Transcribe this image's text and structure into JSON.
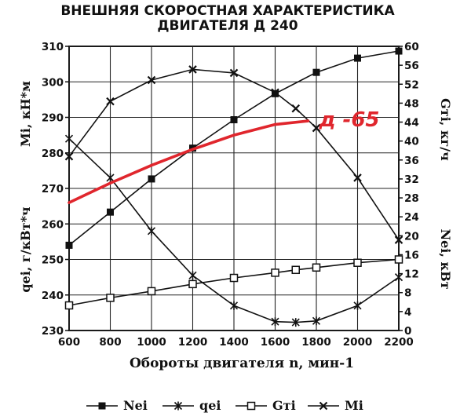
{
  "chart_data": {
    "type": "line",
    "title_line1": "ВНЕШНЯЯ СКОРОСТНАЯ ХАРАКТЕРИСТИКА",
    "title_line2": "ДВИГАТЕЛЯ Д 240",
    "xlabel": "Обороты двигателя n, мин-1",
    "x_ticks": [
      600,
      800,
      1000,
      1200,
      1400,
      1600,
      1800,
      2000,
      2200
    ],
    "xlim": [
      600,
      2200
    ],
    "grid": true,
    "left_axis": {
      "ylim": [
        230,
        310
      ],
      "ticks": [
        230,
        240,
        250,
        260,
        270,
        280,
        290,
        300,
        310
      ],
      "label_top": "Mi, кН*м",
      "label_bottom": "qei, г/кВт*ч"
    },
    "right_axis": {
      "ylim": [
        0,
        60
      ],
      "ticks": [
        0,
        4,
        8,
        12,
        16,
        20,
        24,
        28,
        32,
        36,
        40,
        44,
        48,
        52,
        56,
        60
      ],
      "label_top": "Gтi, кг/ч",
      "label_bottom": "Nei, кВт"
    },
    "series": [
      {
        "name": "Nei",
        "axis": "right",
        "marker": "filled-square",
        "x": [
          600,
          800,
          1000,
          1200,
          1400,
          1600,
          1800,
          2000,
          2200
        ],
        "y": [
          18,
          25,
          32,
          38.5,
          44.5,
          50,
          54.5,
          57.5,
          59
        ]
      },
      {
        "name": "qei",
        "axis": "left",
        "marker": "asterisk",
        "x": [
          600,
          800,
          1000,
          1200,
          1400,
          1600,
          1700,
          1800,
          2000,
          2200
        ],
        "y": [
          284,
          273,
          258,
          245.5,
          237,
          232.5,
          232.3,
          232.7,
          237,
          245
        ]
      },
      {
        "name": "Gтi",
        "axis": "right",
        "marker": "open-square",
        "x": [
          600,
          800,
          1000,
          1200,
          1400,
          1600,
          1700,
          1800,
          2000,
          2200
        ],
        "y": [
          5.3,
          6.9,
          8.3,
          9.8,
          11.1,
          12.2,
          12.8,
          13.3,
          14.3,
          15
        ]
      },
      {
        "name": "Mi",
        "axis": "left",
        "marker": "cross",
        "x": [
          600,
          800,
          1000,
          1200,
          1400,
          1600,
          1700,
          1800,
          2000,
          2200
        ],
        "y": [
          279,
          294.5,
          300.5,
          303.5,
          302.5,
          297,
          292.5,
          287,
          273,
          255.5
        ]
      }
    ],
    "annotation": {
      "text": "д -65",
      "color": "#e0262d",
      "curve_axis": "left",
      "x": [
        600,
        800,
        1000,
        1200,
        1400,
        1600,
        1760
      ],
      "y": [
        266,
        271.5,
        276.5,
        281,
        285,
        288,
        289
      ]
    }
  }
}
